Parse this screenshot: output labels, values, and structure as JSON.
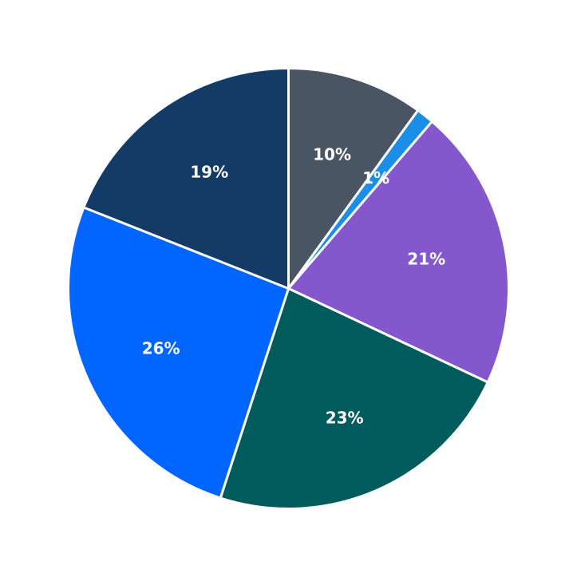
{
  "chart_data": {
    "type": "pie",
    "title": "",
    "start_angle_deg": 0,
    "direction": "clockwise",
    "slices": [
      {
        "label": "10%",
        "value": 10,
        "color": "#4a5563"
      },
      {
        "label": "1%",
        "value": 1.3,
        "color": "#1b8fe8"
      },
      {
        "label": "21%",
        "value": 20.7,
        "color": "#8457cc"
      },
      {
        "label": "23%",
        "value": 23,
        "color": "#005c5c"
      },
      {
        "label": "26%",
        "value": 26,
        "color": "#0066ff"
      },
      {
        "label": "19%",
        "value": 19,
        "color": "#143a66"
      }
    ]
  }
}
